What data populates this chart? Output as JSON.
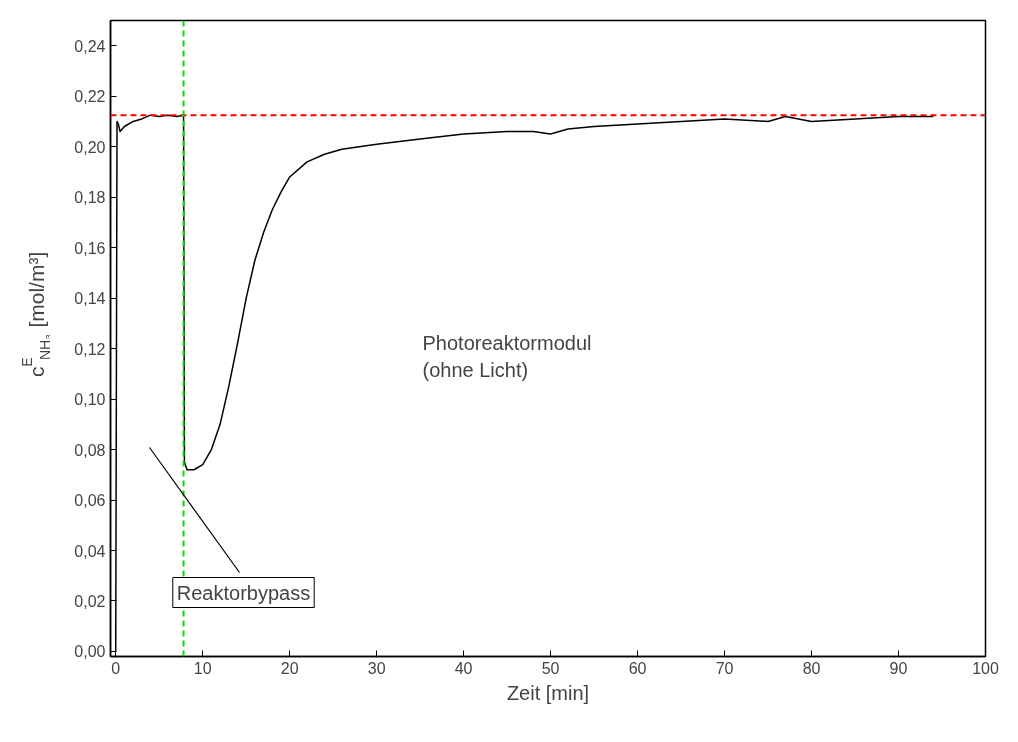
{
  "chart_data": {
    "type": "line",
    "xlabel": "Zeit [min]",
    "ylabel": "c$^{E}$$_{NH₃}$ [mol/m³]",
    "x": [
      0,
      0.15,
      0.3,
      0.5,
      1,
      2,
      3,
      4,
      5,
      6,
      7,
      7.8,
      7.9,
      8.2,
      9,
      10,
      11,
      12,
      13,
      14,
      15,
      16,
      17,
      18,
      19,
      20,
      22,
      24,
      26,
      28,
      30,
      35,
      40,
      45,
      48,
      50,
      52,
      55,
      60,
      65,
      70,
      75,
      77,
      80,
      85,
      90,
      94
    ],
    "series": [
      {
        "color": "#000000",
        "values": [
          0,
          0.21,
          0.209,
          0.206,
          0.208,
          0.21,
          0.211,
          0.2125,
          0.212,
          0.2125,
          0.212,
          0.2125,
          0.075,
          0.072,
          0.072,
          0.074,
          0.08,
          0.09,
          0.105,
          0.122,
          0.14,
          0.155,
          0.166,
          0.175,
          0.182,
          0.188,
          0.194,
          0.197,
          0.199,
          0.2,
          0.201,
          0.203,
          0.205,
          0.206,
          0.206,
          0.205,
          0.207,
          0.208,
          0.209,
          0.21,
          0.211,
          0.21,
          0.212,
          0.21,
          0.211,
          0.212,
          0.212
        ]
      }
    ],
    "xlim": [
      -0.6,
      100
    ],
    "ylim": [
      -0.002,
      0.25
    ],
    "xticks": [
      0,
      10,
      20,
      30,
      40,
      50,
      60,
      70,
      80,
      90,
      100
    ],
    "yticks": [
      {
        "value": 0,
        "label": "0,00"
      },
      {
        "value": 0.02,
        "label": "0,02"
      },
      {
        "value": 0.04,
        "label": "0,04"
      },
      {
        "value": 0.06,
        "label": "0,06"
      },
      {
        "value": 0.08,
        "label": "0,08"
      },
      {
        "value": 0.1,
        "label": "0,10"
      },
      {
        "value": 0.12,
        "label": "0,12"
      },
      {
        "value": 0.14,
        "label": "0,14"
      },
      {
        "value": 0.16,
        "label": "0,16"
      },
      {
        "value": 0.18,
        "label": "0,18"
      },
      {
        "value": 0.2,
        "label": "0,20"
      },
      {
        "value": 0.22,
        "label": "0,22"
      },
      {
        "value": 0.24,
        "label": "0,24"
      }
    ],
    "ref_lines": [
      {
        "axis": "y",
        "value": 0.2125,
        "color": "#ff0000",
        "line_style": "dashed"
      },
      {
        "axis": "x",
        "value": 7.8,
        "color": "#00dd00",
        "line_style": "dashed"
      }
    ],
    "annotations": [
      "Photoreaktormodul\n(ohne Licht)",
      "Reaktorbypass"
    ],
    "grid": false,
    "marker": "none",
    "line_style": "solid"
  }
}
